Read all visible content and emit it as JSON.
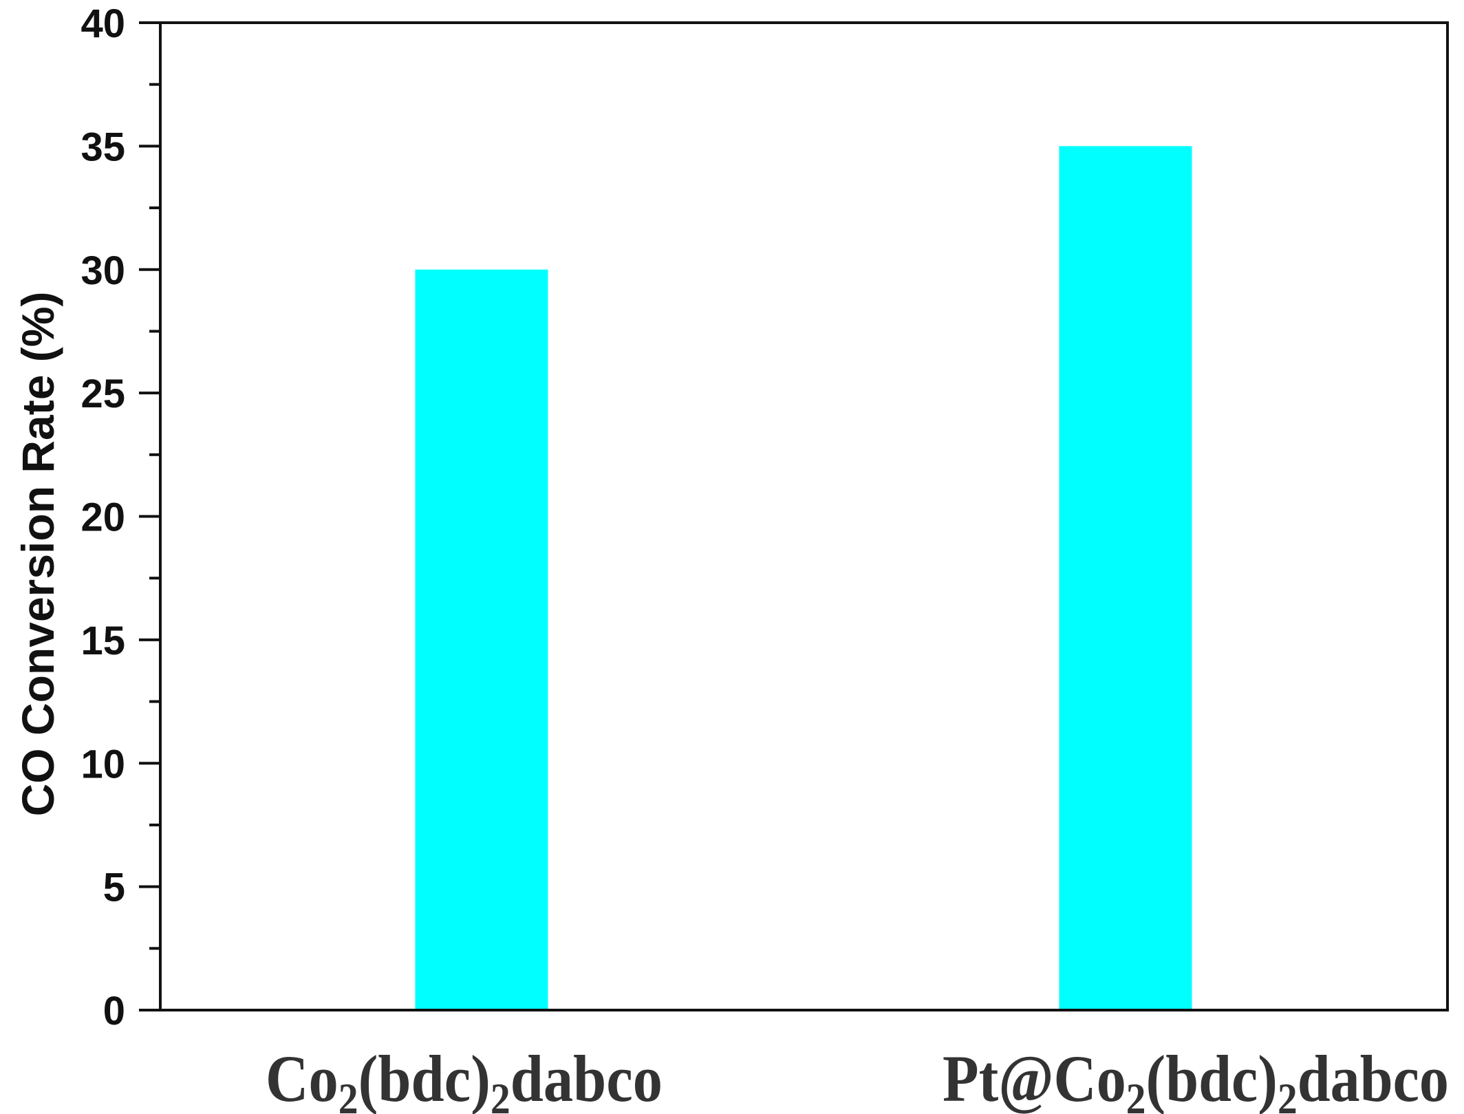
{
  "chart_data": {
    "type": "bar",
    "title": "",
    "xlabel": "",
    "ylabel": "CO Conversion Rate (%)",
    "categories": [
      "Co2(bdc)2dabco",
      "Pt@Co2(bdc)2dabco"
    ],
    "category_labels_rich": [
      [
        {
          "t": "Co",
          "sub": false
        },
        {
          "t": "2",
          "sub": true
        },
        {
          "t": "(bdc)",
          "sub": false
        },
        {
          "t": "2",
          "sub": true
        },
        {
          "t": "dabco",
          "sub": false
        }
      ],
      [
        {
          "t": "Pt@Co",
          "sub": false
        },
        {
          "t": "2",
          "sub": true
        },
        {
          "t": "(bdc)",
          "sub": false
        },
        {
          "t": "2",
          "sub": true
        },
        {
          "t": "dabco",
          "sub": false
        }
      ]
    ],
    "values": [
      30,
      35
    ],
    "ylim": [
      0,
      40
    ],
    "yticks": [
      0,
      5,
      10,
      15,
      20,
      25,
      30,
      35,
      40
    ],
    "yminor_step": 2.5,
    "grid": false,
    "legend": null,
    "bar_color": "#00FFFF"
  },
  "colors": {
    "bar": "#00FFFF",
    "axis": "#111111",
    "label_text": "#333333"
  }
}
